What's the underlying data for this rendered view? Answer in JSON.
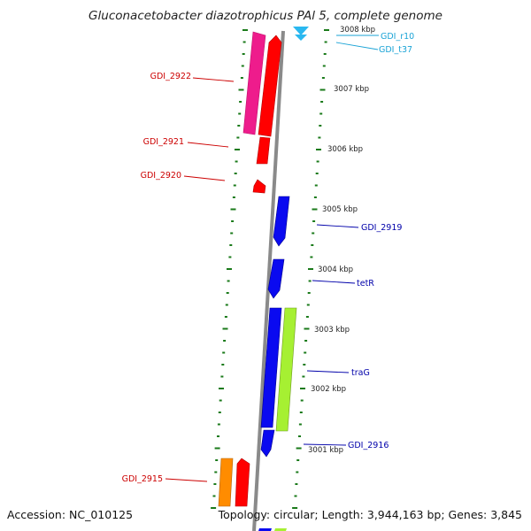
{
  "title": "Gluconacetobacter diazotrophicus PAl 5, complete genome",
  "footer": {
    "accession": "Accession: NC_010125",
    "topology": "Topology: circular; Length: 3,944,163 bp; Genes: 3,845"
  },
  "colors": {
    "backbone": "#8a8a8a",
    "ticks": "#1a7a1a",
    "label_left": "#cc0000",
    "label_right": "#0000aa",
    "label_rna": "#1aa3d6",
    "red": "#ff0000",
    "magenta": "#ee1c8c",
    "blue": "#0a0af0",
    "lime": "#a6f032",
    "orange": "#ff8c00",
    "cyan": "#2ab8f0"
  },
  "scale_labels": [
    "3008 kbp",
    "3007 kbp",
    "3006 kbp",
    "3005 kbp",
    "3004 kbp",
    "3003 kbp",
    "3002 kbp",
    "3001 kbp"
  ],
  "gene_labels": [
    {
      "text": "GDI_r10",
      "side": "right",
      "kind": "rna"
    },
    {
      "text": "GDI_t37",
      "side": "right",
      "kind": "rna"
    },
    {
      "text": "GDI_2922",
      "side": "left",
      "kind": "gene"
    },
    {
      "text": "GDI_2921",
      "side": "left",
      "kind": "gene"
    },
    {
      "text": "GDI_2920",
      "side": "left",
      "kind": "gene"
    },
    {
      "text": "GDI_2919",
      "side": "right",
      "kind": "gene"
    },
    {
      "text": "tetR",
      "side": "right",
      "kind": "gene"
    },
    {
      "text": "traG",
      "side": "right",
      "kind": "gene"
    },
    {
      "text": "GDI_2916",
      "side": "right",
      "kind": "gene"
    },
    {
      "text": "GDI_2915",
      "side": "left",
      "kind": "gene"
    }
  ]
}
